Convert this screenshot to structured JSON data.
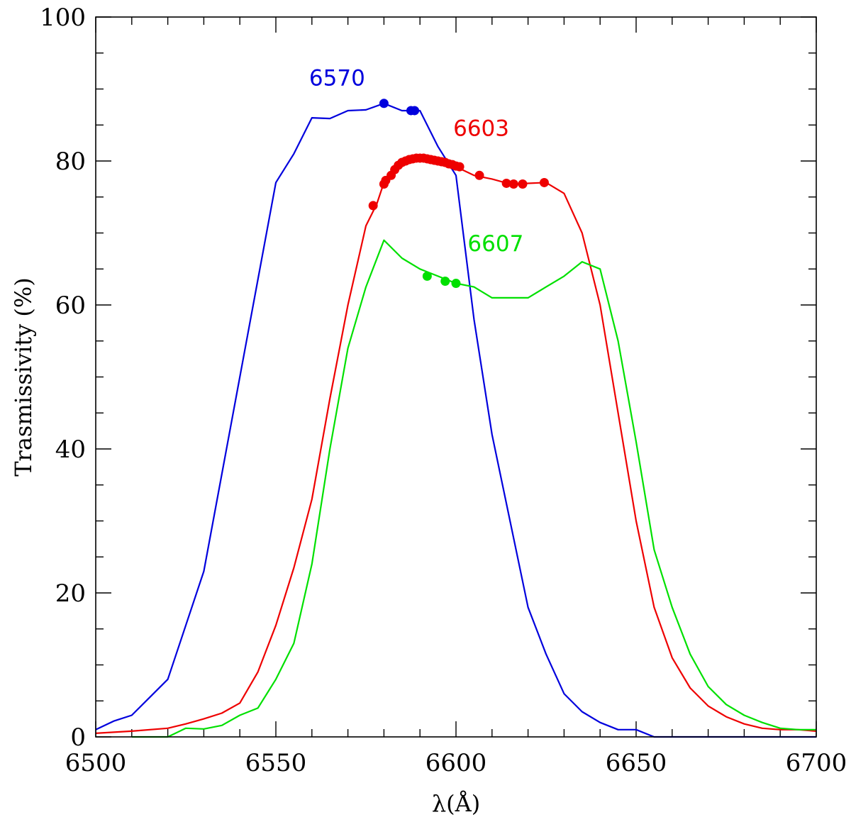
{
  "chart_data": {
    "type": "line",
    "title": "",
    "xlabel": "λ(Å)",
    "ylabel": "Trasmissivity (%)",
    "xlim": [
      6500,
      6700
    ],
    "ylim": [
      0,
      100
    ],
    "x_ticks": [
      6500,
      6550,
      6600,
      6650,
      6700
    ],
    "y_ticks": [
      0,
      20,
      40,
      60,
      80,
      100
    ],
    "x_minor_step": 10,
    "y_minor_step": 5,
    "grid": false,
    "series": [
      {
        "name": "6570",
        "color": "#0000dd",
        "line": {
          "x": [
            6500,
            6505,
            6510,
            6515,
            6520,
            6525,
            6530,
            6535,
            6540,
            6545,
            6550,
            6555,
            6560,
            6565,
            6570,
            6575,
            6580,
            6585,
            6590,
            6595,
            6600,
            6605,
            6610,
            6615,
            6620,
            6625,
            6630,
            6635,
            6640,
            6645,
            6650,
            6655,
            6660,
            6665,
            6670,
            6675,
            6680,
            6685,
            6690,
            6695,
            6700
          ],
          "y": [
            1.0,
            2.2,
            3.0,
            5.5,
            8.0,
            15.5,
            23.0,
            36.5,
            50.0,
            63.5,
            77.0,
            81.0,
            86.0,
            85.9,
            87.0,
            87.1,
            88.0,
            87.0,
            87.0,
            82.0,
            78.0,
            58.0,
            42.0,
            30.0,
            18.0,
            11.5,
            6.0,
            3.5,
            2.0,
            1.0,
            1.0,
            0.0,
            0.0,
            0.0,
            0.0,
            0.0,
            0.0,
            0.0,
            0.0,
            0.0,
            0.0
          ]
        },
        "points": {
          "x": [
            6580.0,
            6587.5,
            6588.5
          ],
          "y": [
            88.0,
            87.0,
            87.0
          ]
        }
      },
      {
        "name": "6603",
        "color": "#ee0000",
        "line": {
          "x": [
            6500,
            6510,
            6520,
            6525,
            6530,
            6535,
            6540,
            6545,
            6550,
            6555,
            6560,
            6565,
            6570,
            6575,
            6578,
            6580,
            6582,
            6585,
            6588,
            6590,
            6592,
            6595,
            6598,
            6600,
            6605,
            6610,
            6615,
            6620,
            6625,
            6630,
            6635,
            6640,
            6645,
            6650,
            6655,
            6660,
            6665,
            6670,
            6675,
            6680,
            6685,
            6690,
            6695,
            6700
          ],
          "y": [
            0.5,
            0.8,
            1.2,
            1.8,
            2.5,
            3.3,
            4.7,
            9.0,
            15.5,
            23.5,
            33.0,
            47.0,
            60.0,
            71.0,
            74.0,
            77.0,
            78.5,
            79.6,
            80.1,
            80.3,
            80.3,
            80.0,
            79.6,
            79.2,
            78.0,
            77.5,
            76.8,
            76.9,
            77.0,
            75.5,
            70.0,
            60.0,
            45.0,
            30.0,
            18.0,
            11.0,
            6.8,
            4.3,
            2.8,
            1.8,
            1.2,
            1.0,
            1.0,
            0.8
          ]
        },
        "points": {
          "x": [
            6577.0,
            6580.0,
            6580.5,
            6582.0,
            6583.0,
            6584.0,
            6585.0,
            6586.0,
            6587.0,
            6588.0,
            6589.0,
            6590.0,
            6591.0,
            6592.0,
            6593.0,
            6594.0,
            6595.0,
            6596.0,
            6597.0,
            6598.0,
            6599.0,
            6600.0,
            6601.0,
            6606.5,
            6614.0,
            6616.0,
            6618.5,
            6624.5
          ],
          "y": [
            73.8,
            76.8,
            77.3,
            78.0,
            78.8,
            79.4,
            79.8,
            80.0,
            80.2,
            80.3,
            80.4,
            80.4,
            80.4,
            80.3,
            80.2,
            80.1,
            80.0,
            79.9,
            79.8,
            79.6,
            79.5,
            79.3,
            79.2,
            78.0,
            76.9,
            76.8,
            76.8,
            77.0
          ]
        }
      },
      {
        "name": "6607",
        "color": "#00e000",
        "line": {
          "x": [
            6510,
            6515,
            6520,
            6525,
            6530,
            6535,
            6540,
            6545,
            6550,
            6555,
            6560,
            6565,
            6570,
            6575,
            6580,
            6585,
            6590,
            6595,
            6600,
            6605,
            6610,
            6615,
            6620,
            6625,
            6630,
            6635,
            6640,
            6645,
            6650,
            6655,
            6660,
            6665,
            6670,
            6675,
            6680,
            6685,
            6690,
            6695,
            6700
          ],
          "y": [
            0.0,
            0.0,
            0.0,
            1.2,
            1.1,
            1.6,
            3.0,
            4.0,
            8.0,
            13.0,
            24.0,
            40.0,
            54.0,
            62.5,
            69.0,
            66.5,
            65.0,
            64.0,
            63.0,
            62.5,
            61.0,
            61.0,
            61.0,
            62.5,
            64.0,
            66.0,
            65.0,
            55.0,
            41.0,
            26.0,
            18.0,
            11.5,
            7.0,
            4.5,
            3.0,
            2.0,
            1.2,
            1.0,
            1.0
          ]
        },
        "points": {
          "x": [
            6592.0,
            6597.0,
            6600.0
          ],
          "y": [
            64.0,
            63.3,
            63.0
          ]
        }
      }
    ],
    "annotations": [
      {
        "text": "6570",
        "x": 6567,
        "y": 90.5,
        "color": "#0000dd"
      },
      {
        "text": "6603",
        "x": 6607,
        "y": 83.5,
        "color": "#ee0000"
      },
      {
        "text": "6607",
        "x": 6611,
        "y": 67.5,
        "color": "#00e000"
      }
    ]
  }
}
